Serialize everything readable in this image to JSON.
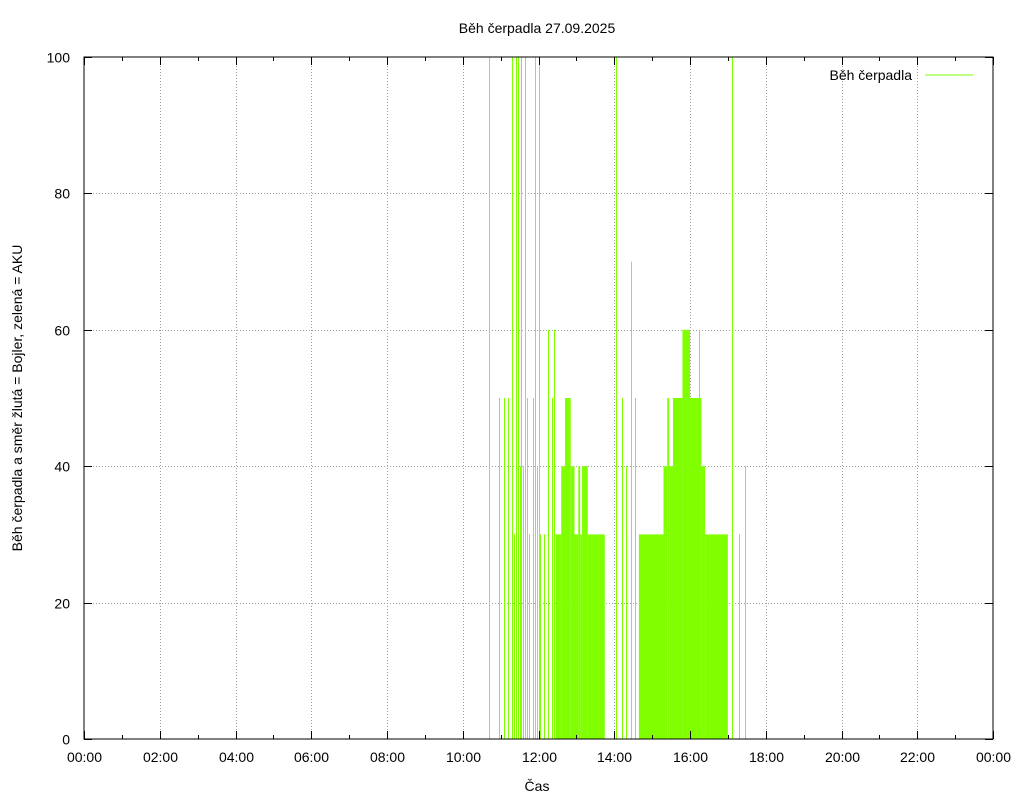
{
  "chart_data": {
    "type": "bar",
    "title": "Běh čerpadla 27.09.2025",
    "xlabel": "Čas",
    "ylabel": "Běh čerpadla a směr žlutá = Bojler, zelená = AKU",
    "xlim": [
      0,
      24
    ],
    "ylim": [
      0,
      100
    ],
    "x_ticks": [
      "00:00",
      "02:00",
      "04:00",
      "06:00",
      "08:00",
      "10:00",
      "12:00",
      "14:00",
      "16:00",
      "18:00",
      "20:00",
      "22:00",
      "00:00"
    ],
    "y_ticks": [
      "0",
      "20",
      "40",
      "60",
      "80",
      "100"
    ],
    "grid": true,
    "legend_position": "top-right",
    "series": [
      {
        "name": "Běh čerpadla",
        "color": "#7fff00",
        "spikes": [
          {
            "x": 10.7,
            "y": 100
          },
          {
            "x": 10.95,
            "y": 50
          },
          {
            "x": 11.1,
            "y": 50
          },
          {
            "x": 11.2,
            "y": 50
          },
          {
            "x": 11.3,
            "y": 100
          },
          {
            "x": 11.35,
            "y": 30
          },
          {
            "x": 11.4,
            "y": 100
          },
          {
            "x": 11.45,
            "y": 100
          },
          {
            "x": 11.5,
            "y": 40
          },
          {
            "x": 11.55,
            "y": 100
          },
          {
            "x": 11.6,
            "y": 40
          },
          {
            "x": 11.65,
            "y": 100
          },
          {
            "x": 11.7,
            "y": 50
          },
          {
            "x": 11.75,
            "y": 30
          },
          {
            "x": 11.85,
            "y": 50
          },
          {
            "x": 11.9,
            "y": 100
          },
          {
            "x": 11.95,
            "y": 40
          },
          {
            "x": 12.0,
            "y": 100
          },
          {
            "x": 12.05,
            "y": 30
          },
          {
            "x": 12.15,
            "y": 30
          },
          {
            "x": 12.25,
            "y": 60
          },
          {
            "x": 12.35,
            "y": 50
          },
          {
            "x": 12.4,
            "y": 60
          },
          {
            "x": 14.05,
            "y": 100
          },
          {
            "x": 14.2,
            "y": 50
          },
          {
            "x": 14.3,
            "y": 40
          },
          {
            "x": 14.45,
            "y": 70
          },
          {
            "x": 14.55,
            "y": 50
          },
          {
            "x": 16.25,
            "y": 60
          },
          {
            "x": 17.1,
            "y": 100
          },
          {
            "x": 17.3,
            "y": 30
          },
          {
            "x": 17.45,
            "y": 40
          }
        ],
        "blocks": [
          {
            "x0": 12.45,
            "x1": 12.6,
            "y": 30
          },
          {
            "x0": 12.6,
            "x1": 12.7,
            "y": 40
          },
          {
            "x0": 12.7,
            "x1": 12.85,
            "y": 50
          },
          {
            "x0": 12.85,
            "x1": 12.95,
            "y": 40
          },
          {
            "x0": 12.95,
            "x1": 13.05,
            "y": 30
          },
          {
            "x0": 13.05,
            "x1": 13.1,
            "y": 40
          },
          {
            "x0": 13.1,
            "x1": 13.15,
            "y": 30
          },
          {
            "x0": 13.15,
            "x1": 13.3,
            "y": 40
          },
          {
            "x0": 13.3,
            "x1": 13.75,
            "y": 30
          },
          {
            "x0": 14.65,
            "x1": 15.3,
            "y": 30
          },
          {
            "x0": 15.3,
            "x1": 15.4,
            "y": 40
          },
          {
            "x0": 15.4,
            "x1": 15.45,
            "y": 50
          },
          {
            "x0": 15.45,
            "x1": 15.55,
            "y": 40
          },
          {
            "x0": 15.55,
            "x1": 15.8,
            "y": 50
          },
          {
            "x0": 15.8,
            "x1": 16.0,
            "y": 60
          },
          {
            "x0": 16.0,
            "x1": 16.3,
            "y": 50
          },
          {
            "x0": 16.3,
            "x1": 16.4,
            "y": 40
          },
          {
            "x0": 16.4,
            "x1": 17.0,
            "y": 30
          }
        ]
      }
    ]
  }
}
